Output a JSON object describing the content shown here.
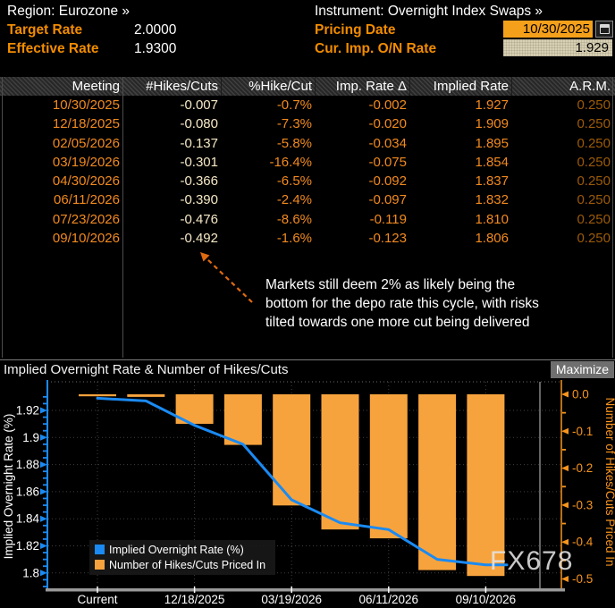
{
  "header": {
    "region_line": "Region: Eurozone »",
    "instrument_line": "Instrument: Overnight Index Swaps »",
    "target_rate_label": "Target Rate",
    "target_rate_value": "2.0000",
    "effective_rate_label": "Effective Rate",
    "effective_rate_value": "1.9300",
    "pricing_date_label": "Pricing Date",
    "pricing_date_value": "10/30/2025",
    "cur_imp_label": "Cur. Imp. O/N Rate",
    "cur_imp_value": "1.929"
  },
  "table": {
    "columns": [
      "Meeting",
      "#Hikes/Cuts",
      "%Hike/Cut",
      "Imp. Rate Δ",
      "Implied Rate",
      "A.R.M."
    ],
    "rows": [
      [
        "10/30/2025",
        "-0.007",
        "-0.7%",
        "-0.002",
        "1.927",
        "0.250"
      ],
      [
        "12/18/2025",
        "-0.080",
        "-7.3%",
        "-0.020",
        "1.909",
        "0.250"
      ],
      [
        "02/05/2026",
        "-0.137",
        "-5.8%",
        "-0.034",
        "1.895",
        "0.250"
      ],
      [
        "03/19/2026",
        "-0.301",
        "-16.4%",
        "-0.075",
        "1.854",
        "0.250"
      ],
      [
        "04/30/2026",
        "-0.366",
        "-6.5%",
        "-0.092",
        "1.837",
        "0.250"
      ],
      [
        "06/11/2026",
        "-0.390",
        "-2.4%",
        "-0.097",
        "1.832",
        "0.250"
      ],
      [
        "07/23/2026",
        "-0.476",
        "-8.6%",
        "-0.119",
        "1.810",
        "0.250"
      ],
      [
        "09/10/2026",
        "-0.492",
        "-1.6%",
        "-0.123",
        "1.806",
        "0.250"
      ]
    ]
  },
  "annotation": {
    "lines": [
      "Markets still deem 2% as likely being the",
      "bottom for the depo rate this cycle, with risks",
      "tilted towards one more cut being delivered"
    ]
  },
  "chart": {
    "title": "Implied Overnight Rate & Number of Hikes/Cuts",
    "maximize_label": "Maximize"
  },
  "watermark": "FX678",
  "chart_data": {
    "type": "bar+line",
    "categories": [
      "Current",
      "10/30/2025",
      "12/18/2025",
      "02/05/2026",
      "03/19/2026",
      "04/30/2026",
      "06/11/2026",
      "07/23/2026",
      "09/10/2026"
    ],
    "series": [
      {
        "name": "Implied Overnight Rate (%)",
        "type": "line",
        "axis": "left",
        "color": "#1b8af2",
        "values": [
          1.929,
          1.927,
          1.909,
          1.895,
          1.854,
          1.837,
          1.832,
          1.81,
          1.806
        ]
      },
      {
        "name": "Number of Hikes/Cuts Priced In",
        "type": "bar",
        "axis": "right",
        "color": "#f7a33d",
        "values": [
          0.0,
          -0.007,
          -0.08,
          -0.137,
          -0.301,
          -0.366,
          -0.39,
          -0.476,
          -0.492
        ]
      }
    ],
    "left_axis": {
      "label": "Implied Overnight Rate (%)",
      "color": "#1b8af2",
      "text_color": "#ffffff",
      "ticks": [
        1.92,
        1.9,
        1.88,
        1.86,
        1.84,
        1.82,
        1.8
      ],
      "tick_labels": [
        "1.92",
        "1.9",
        "1.88",
        "1.86",
        "1.84",
        "1.82",
        "1.8"
      ],
      "range": [
        1.7875,
        1.9398
      ]
    },
    "right_axis": {
      "label": "Number of Hikes/Cuts Priced In",
      "color": "#f7941e",
      "text_color": "#f7941e",
      "ticks": [
        0.0,
        -0.1,
        -0.2,
        -0.3,
        -0.4,
        -0.5
      ],
      "tick_labels": [
        "0.0",
        "-0.1",
        "-0.2",
        "-0.3",
        "-0.4",
        "-0.5"
      ],
      "range": [
        -0.528,
        0.029
      ]
    },
    "x_tick_labels": [
      "Current",
      "12/18/2025",
      "03/19/2026",
      "06/11/2026",
      "09/10/2026"
    ],
    "x_tick_slots": [
      0,
      2,
      4,
      6,
      8
    ],
    "legend": {
      "position": "bottom-left",
      "entries": [
        "Implied Overnight Rate (%)",
        "Number of Hikes/Cuts Priced In"
      ]
    },
    "grid": "dotted"
  }
}
